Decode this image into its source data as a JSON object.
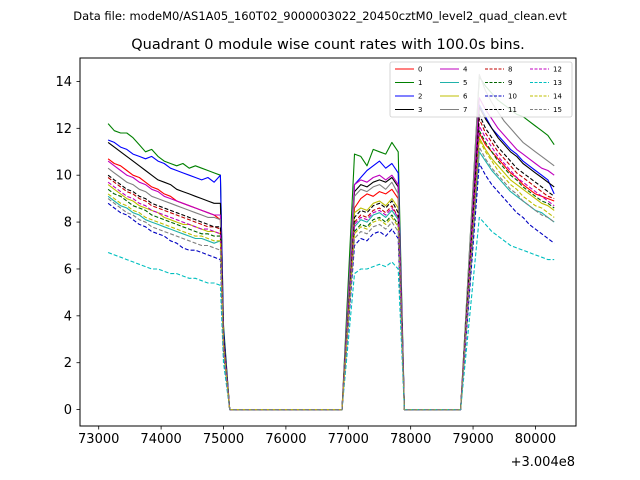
{
  "chart_data": {
    "type": "line",
    "suptitle": "Data file: modeM0/AS1A05_160T02_9000003022_20450cztM0_level2_quad_clean.evt",
    "title": "Quadrant 0 module wise count rates with 100.0s bins.",
    "xlabel": "",
    "ylabel": "",
    "x_offset_label": "+3.004e8",
    "xlim": [
      72700,
      80650
    ],
    "ylim": [
      -0.7,
      15.0
    ],
    "x_ticks": [
      73000,
      74000,
      75000,
      76000,
      77000,
      78000,
      79000,
      80000
    ],
    "x_tick_labels": [
      "73000",
      "74000",
      "75000",
      "76000",
      "77000",
      "78000",
      "79000",
      "80000"
    ],
    "y_ticks": [
      0,
      2,
      4,
      6,
      8,
      10,
      12,
      14
    ],
    "y_tick_labels": [
      "0",
      "2",
      "4",
      "6",
      "8",
      "10",
      "12",
      "14"
    ],
    "legend_location": "upper right",
    "x_segments": [
      {
        "start": 73150,
        "step": 100,
        "count": 19
      },
      {
        "start": 75000,
        "step": 100,
        "count": 20
      },
      {
        "start": 77100,
        "step": 100,
        "count": 8
      },
      {
        "start": 77900,
        "step": 100,
        "count": 10
      },
      {
        "start": 79100,
        "step": 100,
        "count": 13
      }
    ],
    "series": [
      {
        "name": "0",
        "color": "#ff0000",
        "dash": "solid",
        "lv": [
          10.7,
          10.5,
          10.4,
          10.2,
          10.0,
          9.9,
          9.7,
          9.5,
          9.4,
          9.2,
          9.1,
          8.9,
          8.8,
          8.7,
          8.6,
          8.5,
          8.4,
          8.3,
          8.1,
          3.1
        ],
        "hv": [
          8.6,
          9.0,
          9.2,
          9.1,
          9.3,
          9.2,
          9.4,
          9.0
        ],
        "iv": [
          11.8,
          11.3,
          11.0,
          10.7,
          10.4,
          10.1,
          9.9,
          9.6,
          9.4,
          9.2,
          9.1,
          9.0,
          8.9
        ]
      },
      {
        "name": "1",
        "color": "#008000",
        "dash": "solid",
        "lv": [
          12.2,
          11.9,
          11.8,
          11.8,
          11.6,
          11.3,
          11.0,
          11.1,
          10.8,
          10.6,
          10.5,
          10.4,
          10.5,
          10.3,
          10.4,
          10.3,
          10.2,
          10.1,
          10.0,
          3.6
        ],
        "hv": [
          10.9,
          10.8,
          10.4,
          11.1,
          11.0,
          10.9,
          11.4,
          11.0
        ],
        "iv": [
          14.2,
          13.8,
          13.5,
          13.2,
          13.0,
          12.8,
          12.6,
          12.5,
          12.3,
          12.1,
          11.9,
          11.7,
          11.3
        ]
      },
      {
        "name": "2",
        "color": "#0000ff",
        "dash": "solid",
        "lv": [
          11.5,
          11.4,
          11.2,
          11.1,
          10.9,
          10.8,
          10.7,
          10.8,
          10.6,
          10.5,
          10.3,
          10.2,
          10.1,
          10.0,
          9.9,
          9.8,
          9.9,
          9.7,
          10.0,
          3.4
        ],
        "hv": [
          9.6,
          9.9,
          10.2,
          10.4,
          10.6,
          10.3,
          10.5,
          10.1
        ],
        "iv": [
          13.0,
          12.5,
          12.0,
          11.7,
          11.4,
          11.1,
          10.9,
          10.6,
          10.4,
          10.2,
          10.0,
          9.8,
          9.2
        ]
      },
      {
        "name": "3",
        "color": "#000000",
        "dash": "solid",
        "lv": [
          11.4,
          11.2,
          11.0,
          10.8,
          10.6,
          10.4,
          10.2,
          10.0,
          9.8,
          9.7,
          9.6,
          9.4,
          9.3,
          9.2,
          9.1,
          9.0,
          8.9,
          8.8,
          8.8,
          3.2
        ],
        "hv": [
          9.3,
          9.6,
          9.5,
          9.7,
          9.8,
          9.7,
          9.9,
          9.5
        ],
        "iv": [
          12.9,
          12.4,
          12.0,
          11.6,
          11.3,
          11.0,
          10.8,
          10.5,
          10.3,
          10.1,
          9.9,
          9.7,
          9.5
        ]
      },
      {
        "name": "4",
        "color": "#bf00bf",
        "dash": "solid",
        "lv": [
          10.6,
          10.4,
          10.2,
          10.0,
          9.9,
          9.7,
          9.6,
          9.4,
          9.3,
          9.1,
          9.0,
          8.9,
          8.8,
          8.7,
          8.6,
          8.5,
          8.4,
          8.3,
          8.3,
          3.0
        ],
        "hv": [
          9.6,
          9.8,
          9.7,
          9.9,
          10.0,
          9.8,
          10.0,
          9.6
        ],
        "iv": [
          13.3,
          12.8,
          12.4,
          12.0,
          11.7,
          11.4,
          11.1,
          10.9,
          10.7,
          10.5,
          10.3,
          10.2,
          10.0
        ]
      },
      {
        "name": "5",
        "color": "#20b2aa",
        "dash": "solid",
        "lv": [
          9.1,
          8.9,
          8.7,
          8.6,
          8.4,
          8.3,
          8.1,
          8.0,
          7.9,
          7.8,
          7.7,
          7.6,
          7.5,
          7.4,
          7.3,
          7.3,
          7.2,
          7.1,
          7.2,
          2.6
        ],
        "hv": [
          7.8,
          8.1,
          8.0,
          8.3,
          8.4,
          8.2,
          8.5,
          8.1
        ],
        "iv": [
          11.0,
          10.6,
          10.2,
          9.9,
          9.6,
          9.3,
          9.1,
          8.9,
          8.7,
          8.5,
          8.4,
          8.2,
          8.0
        ]
      },
      {
        "name": "6",
        "color": "#bfbf00",
        "dash": "solid",
        "lv": [
          9.6,
          9.4,
          9.2,
          9.0,
          8.9,
          8.7,
          8.6,
          8.5,
          8.4,
          8.2,
          8.1,
          8.0,
          7.9,
          7.9,
          7.8,
          7.7,
          7.6,
          7.6,
          7.5,
          2.8
        ],
        "hv": [
          8.4,
          8.6,
          8.5,
          8.8,
          8.9,
          8.7,
          9.0,
          8.6
        ],
        "iv": [
          11.6,
          11.1,
          10.7,
          10.4,
          10.1,
          9.8,
          9.6,
          9.4,
          9.2,
          9.0,
          8.8,
          8.7,
          8.5
        ]
      },
      {
        "name": "7",
        "color": "#808080",
        "dash": "solid",
        "lv": [
          10.3,
          10.1,
          9.9,
          9.7,
          9.6,
          9.4,
          9.3,
          9.1,
          9.0,
          8.9,
          8.8,
          8.7,
          8.6,
          8.5,
          8.4,
          8.3,
          8.2,
          8.2,
          8.1,
          3.0
        ],
        "hv": [
          9.1,
          9.4,
          9.3,
          9.5,
          9.6,
          9.4,
          9.7,
          9.2
        ],
        "iv": [
          14.3,
          13.6,
          13.1,
          12.7,
          12.3,
          12.0,
          11.7,
          11.4,
          11.2,
          11.0,
          10.8,
          10.6,
          10.4
        ]
      },
      {
        "name": "8",
        "color": "#c00000",
        "dash": "dashed",
        "lv": [
          9.9,
          9.7,
          9.5,
          9.3,
          9.2,
          9.0,
          8.9,
          8.7,
          8.6,
          8.5,
          8.4,
          8.3,
          8.2,
          8.1,
          8.0,
          7.9,
          7.8,
          7.8,
          7.7,
          2.8
        ],
        "hv": [
          8.0,
          8.3,
          8.2,
          8.5,
          8.6,
          8.4,
          8.7,
          8.2
        ],
        "iv": [
          12.4,
          11.8,
          11.4,
          11.0,
          10.7,
          10.4,
          10.1,
          9.9,
          9.7,
          9.5,
          9.3,
          9.1,
          9.0
        ]
      },
      {
        "name": "9",
        "color": "#006400",
        "dash": "dashed",
        "lv": [
          9.4,
          9.2,
          9.1,
          8.9,
          8.7,
          8.6,
          8.5,
          8.3,
          8.2,
          8.1,
          8.0,
          7.9,
          7.8,
          7.7,
          7.6,
          7.5,
          7.5,
          7.4,
          7.4,
          2.7
        ],
        "hv": [
          7.6,
          7.9,
          7.8,
          8.1,
          8.2,
          8.0,
          8.3,
          7.9
        ],
        "iv": [
          11.9,
          11.4,
          11.0,
          10.6,
          10.3,
          10.0,
          9.8,
          9.5,
          9.3,
          9.1,
          8.9,
          8.8,
          8.6
        ]
      },
      {
        "name": "10",
        "color": "#0000c0",
        "dash": "dashed",
        "lv": [
          8.8,
          8.6,
          8.4,
          8.3,
          8.1,
          7.9,
          7.8,
          7.6,
          7.5,
          7.4,
          7.2,
          7.1,
          6.9,
          6.8,
          6.8,
          6.7,
          6.6,
          6.5,
          6.4,
          2.4
        ],
        "hv": [
          7.0,
          7.3,
          7.2,
          7.5,
          7.6,
          7.4,
          7.7,
          7.3
        ],
        "iv": [
          10.5,
          10.0,
          9.6,
          9.3,
          9.0,
          8.7,
          8.4,
          8.2,
          7.9,
          7.7,
          7.5,
          7.3,
          7.1
        ]
      },
      {
        "name": "11",
        "color": "#000000",
        "dash": "dashed",
        "lv": [
          10.0,
          9.8,
          9.6,
          9.4,
          9.3,
          9.1,
          9.0,
          8.8,
          8.7,
          8.6,
          8.5,
          8.4,
          8.3,
          8.2,
          8.1,
          8.0,
          7.9,
          7.8,
          7.8,
          2.9
        ],
        "hv": [
          8.2,
          8.5,
          8.4,
          8.7,
          8.8,
          8.6,
          8.9,
          8.4
        ],
        "iv": [
          12.6,
          12.0,
          11.6,
          11.2,
          10.9,
          10.6,
          10.3,
          10.1,
          9.9,
          9.7,
          9.5,
          9.3,
          9.1
        ]
      },
      {
        "name": "12",
        "color": "#c000c0",
        "dash": "dashed",
        "lv": [
          9.7,
          9.5,
          9.3,
          9.1,
          9.0,
          8.8,
          8.7,
          8.5,
          8.4,
          8.3,
          8.2,
          8.1,
          8.0,
          7.9,
          7.8,
          7.7,
          7.7,
          7.6,
          7.5,
          2.8
        ],
        "hv": [
          7.9,
          8.2,
          8.1,
          8.4,
          8.5,
          8.3,
          8.6,
          8.2
        ],
        "iv": [
          12.1,
          11.6,
          11.2,
          10.8,
          10.5,
          10.2,
          9.9,
          9.7,
          9.5,
          9.3,
          9.1,
          8.9,
          8.7
        ]
      },
      {
        "name": "13",
        "color": "#00bfbf",
        "dash": "dashed",
        "lv": [
          6.7,
          6.6,
          6.5,
          6.4,
          6.3,
          6.2,
          6.1,
          6.0,
          6.0,
          5.9,
          5.8,
          5.8,
          5.7,
          5.6,
          5.6,
          5.5,
          5.4,
          5.4,
          5.3,
          2.0
        ],
        "hv": [
          5.8,
          6.0,
          6.0,
          6.1,
          6.2,
          6.1,
          6.3,
          6.0
        ],
        "iv": [
          8.2,
          7.9,
          7.6,
          7.4,
          7.2,
          7.0,
          6.9,
          6.8,
          6.7,
          6.6,
          6.5,
          6.4,
          6.4
        ]
      },
      {
        "name": "14",
        "color": "#bfbf00",
        "dash": "dashed",
        "lv": [
          9.2,
          9.0,
          8.8,
          8.7,
          8.5,
          8.4,
          8.2,
          8.1,
          8.0,
          7.9,
          7.8,
          7.7,
          7.6,
          7.5,
          7.4,
          7.4,
          7.3,
          7.2,
          7.2,
          2.7
        ],
        "hv": [
          7.5,
          7.8,
          7.7,
          8.0,
          8.1,
          7.9,
          8.2,
          7.8
        ],
        "iv": [
          11.5,
          11.0,
          10.6,
          10.2,
          9.9,
          9.6,
          9.4,
          9.1,
          8.9,
          8.7,
          8.6,
          8.4,
          8.2
        ]
      },
      {
        "name": "15",
        "color": "#808080",
        "dash": "dashed",
        "lv": [
          9.0,
          8.8,
          8.6,
          8.4,
          8.3,
          8.1,
          8.0,
          7.8,
          7.7,
          7.6,
          7.5,
          7.4,
          7.3,
          7.2,
          7.1,
          7.0,
          7.0,
          6.9,
          6.8,
          2.5
        ],
        "hv": [
          7.3,
          7.6,
          7.5,
          7.8,
          7.9,
          7.7,
          8.0,
          7.6
        ],
        "iv": [
          11.2,
          10.7,
          10.3,
          10.0,
          9.7,
          9.4,
          9.2,
          8.9,
          8.7,
          8.5,
          8.3,
          8.2,
          8.0
        ]
      }
    ]
  }
}
